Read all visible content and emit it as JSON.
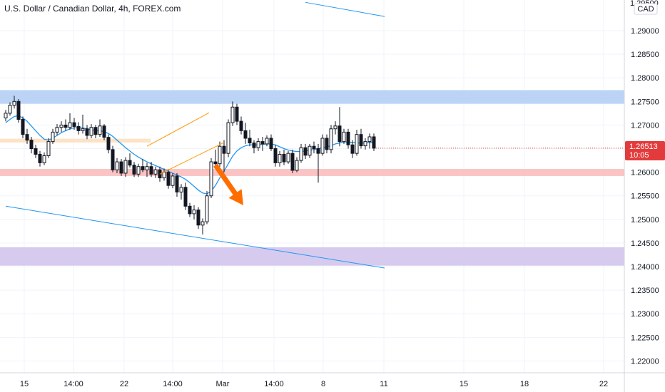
{
  "header": {
    "title": "U.S. Dollar / Canadian Dollar, 4h, FOREX.com"
  },
  "price_axis": {
    "currency": "CAD",
    "top_partial_label": "1.29500",
    "current_price": "1.26513",
    "countdown": "10:05"
  },
  "colors": {
    "background": "#ffffff",
    "grid": "#f0f3fa",
    "up_candle": "#ffffff",
    "down_candle": "#131722",
    "moving_average": "#2196f3",
    "trend_line": "#2196f3",
    "channel": "#ff9800",
    "arrow": "#ff6d00",
    "resistance_zone": "#bbd4f6",
    "support_zone": "#fbc4c4",
    "minor_zone": "#fde3c6",
    "target_zone": "#d6cbee",
    "price_badge": "#e33b3b"
  },
  "chart_data": {
    "type": "candlestick",
    "title": "U.S. Dollar / Canadian Dollar, 4h, FOREX.com",
    "ylabel": "CAD",
    "ylim": [
      1.2175,
      1.2965
    ],
    "x_ticks": [
      "15",
      "14:00",
      "22",
      "14:00",
      "Mar",
      "14:00",
      "8",
      "11",
      "15",
      "18",
      "22"
    ],
    "y_ticks": [
      "1.29000",
      "1.28500",
      "1.28000",
      "1.27500",
      "1.27000",
      "1.26500",
      "1.26000",
      "1.25500",
      "1.25000",
      "1.24500",
      "1.24000",
      "1.23500",
      "1.23000",
      "1.22500",
      "1.22000"
    ],
    "grid": true,
    "zones": [
      {
        "name": "resistance",
        "low": 1.2745,
        "high": 1.2774
      },
      {
        "name": "minor",
        "low": 1.2663,
        "high": 1.2671
      },
      {
        "name": "support",
        "low": 1.2592,
        "high": 1.2607
      },
      {
        "name": "target",
        "low": 1.2402,
        "high": 1.2441
      }
    ],
    "candles": [
      [
        1.2715,
        1.2732,
        1.2708,
        1.2725
      ],
      [
        1.2725,
        1.2748,
        1.272,
        1.2742
      ],
      [
        1.2742,
        1.2762,
        1.2735,
        1.275
      ],
      [
        1.275,
        1.2755,
        1.2705,
        1.2712
      ],
      [
        1.2712,
        1.2718,
        1.2672,
        1.268
      ],
      [
        1.268,
        1.2692,
        1.266,
        1.2668
      ],
      [
        1.2668,
        1.2675,
        1.264,
        1.265
      ],
      [
        1.265,
        1.2658,
        1.263,
        1.2638
      ],
      [
        1.2638,
        1.2645,
        1.2612,
        1.262
      ],
      [
        1.262,
        1.2642,
        1.2615,
        1.2635
      ],
      [
        1.2635,
        1.2672,
        1.263,
        1.2665
      ],
      [
        1.2665,
        1.2692,
        1.266,
        1.2685
      ],
      [
        1.2685,
        1.2702,
        1.2678,
        1.2695
      ],
      [
        1.2695,
        1.2708,
        1.2685,
        1.27
      ],
      [
        1.27,
        1.2712,
        1.2688,
        1.2695
      ],
      [
        1.2695,
        1.2725,
        1.269,
        1.2705
      ],
      [
        1.2705,
        1.2715,
        1.269,
        1.2697
      ],
      [
        1.2697,
        1.2706,
        1.268,
        1.2688
      ],
      [
        1.2688,
        1.2722,
        1.2682,
        1.2692
      ],
      [
        1.2692,
        1.27,
        1.267,
        1.2678
      ],
      [
        1.2678,
        1.2702,
        1.2672,
        1.2695
      ],
      [
        1.2695,
        1.27,
        1.2672,
        1.268
      ],
      [
        1.268,
        1.2712,
        1.2675,
        1.2698
      ],
      [
        1.2698,
        1.2702,
        1.2668,
        1.2674
      ],
      [
        1.2674,
        1.268,
        1.264,
        1.2648
      ],
      [
        1.2648,
        1.2656,
        1.26,
        1.2605
      ],
      [
        1.2605,
        1.263,
        1.2598,
        1.2622
      ],
      [
        1.2622,
        1.2628,
        1.2592,
        1.2598
      ],
      [
        1.2598,
        1.2632,
        1.259,
        1.2625
      ],
      [
        1.2625,
        1.264,
        1.261,
        1.2615
      ],
      [
        1.2615,
        1.2622,
        1.259,
        1.2596
      ],
      [
        1.2596,
        1.2618,
        1.259,
        1.2612
      ],
      [
        1.2612,
        1.2628,
        1.26,
        1.2605
      ],
      [
        1.2605,
        1.262,
        1.259,
        1.2612
      ],
      [
        1.2612,
        1.2622,
        1.259,
        1.2596
      ],
      [
        1.2596,
        1.2612,
        1.2588,
        1.2605
      ],
      [
        1.2605,
        1.2612,
        1.258,
        1.2588
      ],
      [
        1.2588,
        1.2608,
        1.2582,
        1.26
      ],
      [
        1.26,
        1.2606,
        1.2565,
        1.2572
      ],
      [
        1.2572,
        1.2598,
        1.2566,
        1.2592
      ],
      [
        1.2592,
        1.2598,
        1.2548,
        1.2558
      ],
      [
        1.2558,
        1.2575,
        1.2542,
        1.2568
      ],
      [
        1.2568,
        1.2578,
        1.252,
        1.2528
      ],
      [
        1.2528,
        1.2535,
        1.2505,
        1.2512
      ],
      [
        1.2512,
        1.253,
        1.25,
        1.252
      ],
      [
        1.252,
        1.2526,
        1.248,
        1.2488
      ],
      [
        1.2488,
        1.2502,
        1.2468,
        1.2495
      ],
      [
        1.2495,
        1.256,
        1.249,
        1.255
      ],
      [
        1.255,
        1.263,
        1.2545,
        1.2622
      ],
      [
        1.2622,
        1.2648,
        1.261,
        1.2618
      ],
      [
        1.2618,
        1.2665,
        1.2612,
        1.2655
      ],
      [
        1.2655,
        1.2668,
        1.26,
        1.264
      ],
      [
        1.264,
        1.2712,
        1.2632,
        1.2705
      ],
      [
        1.2705,
        1.275,
        1.2698,
        1.2738
      ],
      [
        1.2738,
        1.2745,
        1.27,
        1.2708
      ],
      [
        1.2708,
        1.2718,
        1.268,
        1.2688
      ],
      [
        1.2688,
        1.2705,
        1.266,
        1.2672
      ],
      [
        1.2672,
        1.269,
        1.2655,
        1.2662
      ],
      [
        1.2662,
        1.2668,
        1.264,
        1.2652
      ],
      [
        1.2652,
        1.2672,
        1.2645,
        1.2665
      ],
      [
        1.2665,
        1.2675,
        1.2645,
        1.266
      ],
      [
        1.266,
        1.2678,
        1.2655,
        1.2672
      ],
      [
        1.2672,
        1.268,
        1.2645,
        1.265
      ],
      [
        1.265,
        1.2658,
        1.2612,
        1.262
      ],
      [
        1.262,
        1.2645,
        1.2612,
        1.2638
      ],
      [
        1.2638,
        1.2648,
        1.2615,
        1.2622
      ],
      [
        1.2622,
        1.2645,
        1.2618,
        1.264
      ],
      [
        1.264,
        1.2648,
        1.2598,
        1.2604
      ],
      [
        1.2604,
        1.2632,
        1.26,
        1.2625
      ],
      [
        1.2625,
        1.266,
        1.262,
        1.2652
      ],
      [
        1.2652,
        1.266,
        1.2628,
        1.2636
      ],
      [
        1.2636,
        1.266,
        1.263,
        1.2655
      ],
      [
        1.2655,
        1.2665,
        1.264,
        1.265
      ],
      [
        1.265,
        1.266,
        1.2578,
        1.264
      ],
      [
        1.264,
        1.268,
        1.2635,
        1.2672
      ],
      [
        1.2672,
        1.268,
        1.264,
        1.2648
      ],
      [
        1.2648,
        1.27,
        1.264,
        1.2692
      ],
      [
        1.2692,
        1.2708,
        1.268,
        1.2698
      ],
      [
        1.2698,
        1.2738,
        1.2655,
        1.2665
      ],
      [
        1.2665,
        1.2692,
        1.266,
        1.2685
      ],
      [
        1.2685,
        1.2692,
        1.265,
        1.2658
      ],
      [
        1.2658,
        1.2668,
        1.263,
        1.264
      ],
      [
        1.264,
        1.269,
        1.2635,
        1.268
      ],
      [
        1.268,
        1.2692,
        1.265,
        1.2656
      ],
      [
        1.2656,
        1.2672,
        1.2648,
        1.2665
      ],
      [
        1.2665,
        1.2682,
        1.265,
        1.2675
      ],
      [
        1.2675,
        1.2682,
        1.2645,
        1.2651
      ]
    ],
    "moving_average": [
      1.2705,
      1.2712,
      1.2718,
      1.272,
      1.2715,
      1.2708,
      1.2698,
      1.2688,
      1.2678,
      1.267,
      1.2668,
      1.2672,
      1.2678,
      1.2684,
      1.2688,
      1.2692,
      1.2694,
      1.2694,
      1.2694,
      1.2692,
      1.269,
      1.2689,
      1.2688,
      1.2686,
      1.2682,
      1.2676,
      1.2668,
      1.266,
      1.2652,
      1.2645,
      1.2638,
      1.2632,
      1.2627,
      1.2622,
      1.2618,
      1.2614,
      1.261,
      1.2606,
      1.2602,
      1.2598,
      1.2594,
      1.259,
      1.2585,
      1.2578,
      1.257,
      1.2562,
      1.2556,
      1.2554,
      1.256,
      1.2572,
      1.2588,
      1.2602,
      1.2618,
      1.2634,
      1.2645,
      1.2652,
      1.2656,
      1.2658,
      1.2658,
      1.2658,
      1.2659,
      1.266,
      1.266,
      1.2658,
      1.2654,
      1.265,
      1.2647,
      1.2645,
      1.2644,
      1.2644,
      1.2645,
      1.2647,
      1.2648,
      1.265,
      1.2652,
      1.2654,
      1.2656,
      1.266,
      1.2662,
      1.2664,
      1.2664,
      1.2663,
      1.2662,
      1.2662,
      1.2662,
      1.2663,
      1.2663
    ],
    "trend_lines": [
      {
        "name": "lower-trendline",
        "points": [
          [
            0,
            1.2528
          ],
          [
            88.5,
            1.2397
          ]
        ]
      },
      {
        "name": "upper-trendline",
        "points": [
          [
            70.0,
            1.296
          ],
          [
            88.5,
            1.293
          ]
        ]
      }
    ],
    "channel": {
      "upper": [
        [
          33.0,
          1.2655
        ],
        [
          47.5,
          1.2726
        ]
      ],
      "lower": [
        [
          36.0,
          1.2596
        ],
        [
          51.0,
          1.2663
        ]
      ]
    },
    "forecast_arrow": {
      "from": [
        49.0,
        1.2615
      ],
      "to": [
        55.5,
        1.253
      ]
    }
  }
}
